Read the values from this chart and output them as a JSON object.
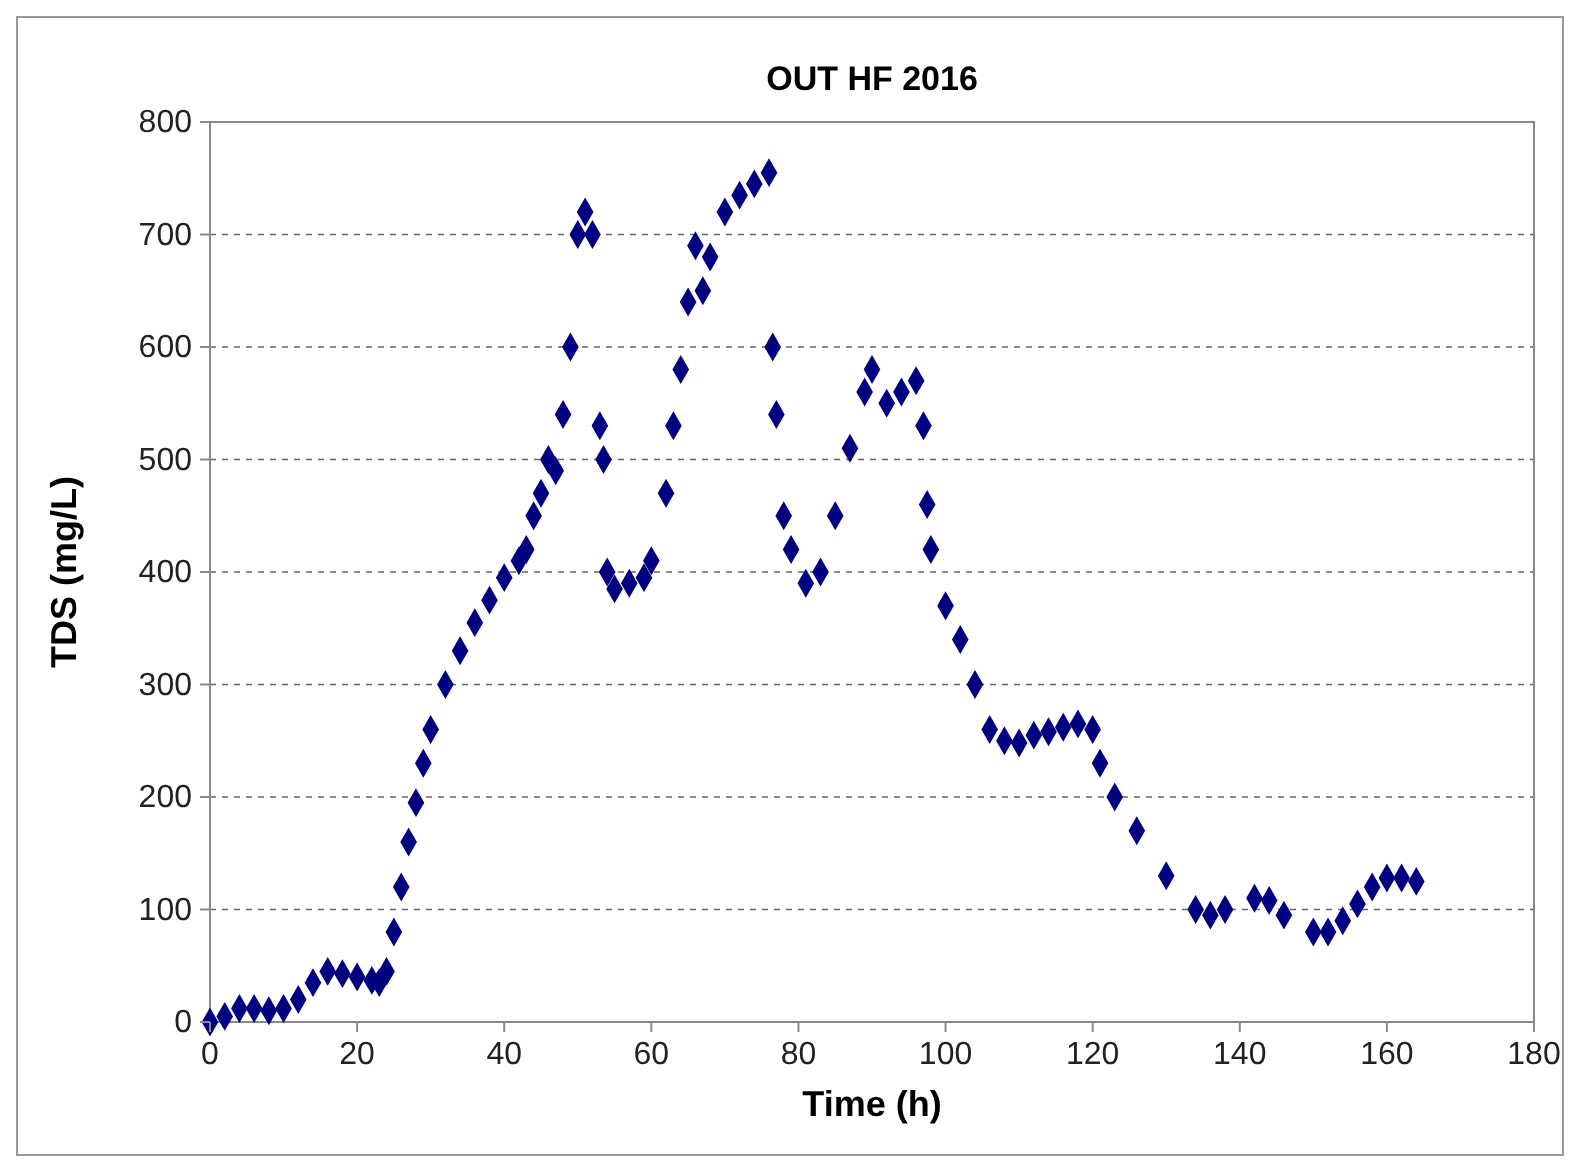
{
  "chart_data": {
    "type": "scatter",
    "title": "OUT HF 2016",
    "xlabel": "Time (h)",
    "ylabel": "TDS (mg/L)",
    "xlim": [
      0,
      180
    ],
    "xticks": [
      0,
      20,
      40,
      60,
      80,
      100,
      120,
      140,
      160,
      180
    ],
    "ylim": [
      0,
      800
    ],
    "yticks": [
      0,
      100,
      200,
      300,
      400,
      500,
      600,
      700,
      800
    ],
    "grid": "y",
    "marker": "diamond",
    "series": [
      {
        "color": "#000080",
        "x": [
          0,
          2,
          4,
          6,
          8,
          10,
          12,
          14,
          16,
          18,
          20,
          22,
          23,
          24,
          25,
          26,
          27,
          28,
          29,
          30,
          32,
          34,
          36,
          38,
          40,
          42,
          43,
          44,
          45,
          46,
          47,
          48,
          49,
          50,
          51,
          52,
          53,
          53.5,
          54,
          55,
          57,
          59,
          60,
          62,
          63,
          64,
          65,
          66,
          67,
          68,
          70,
          72,
          74,
          76,
          76.5,
          77,
          78,
          79,
          81,
          83,
          85,
          87,
          89,
          90,
          92,
          94,
          96,
          97,
          97.5,
          98,
          100,
          102,
          104,
          106,
          108,
          110,
          112,
          114,
          116,
          118,
          120,
          121,
          123,
          126,
          130,
          134,
          136,
          138,
          142,
          144,
          146,
          150,
          152,
          154,
          156,
          158,
          160,
          162,
          164
        ],
        "values": [
          0,
          5,
          12,
          12,
          10,
          12,
          20,
          35,
          45,
          43,
          40,
          37,
          35,
          45,
          80,
          120,
          160,
          195,
          230,
          260,
          300,
          330,
          355,
          375,
          395,
          410,
          420,
          450,
          470,
          500,
          490,
          540,
          600,
          700,
          720,
          700,
          530,
          500,
          400,
          385,
          390,
          395,
          410,
          470,
          530,
          580,
          640,
          690,
          650,
          680,
          720,
          735,
          745,
          755,
          600,
          540,
          450,
          420,
          390,
          400,
          450,
          510,
          560,
          580,
          550,
          560,
          570,
          530,
          460,
          420,
          370,
          340,
          300,
          260,
          250,
          248,
          255,
          258,
          262,
          265,
          260,
          230,
          200,
          170,
          130,
          100,
          95,
          100,
          110,
          108,
          95,
          80,
          80,
          90,
          105,
          120,
          128,
          128,
          125
        ]
      }
    ]
  }
}
